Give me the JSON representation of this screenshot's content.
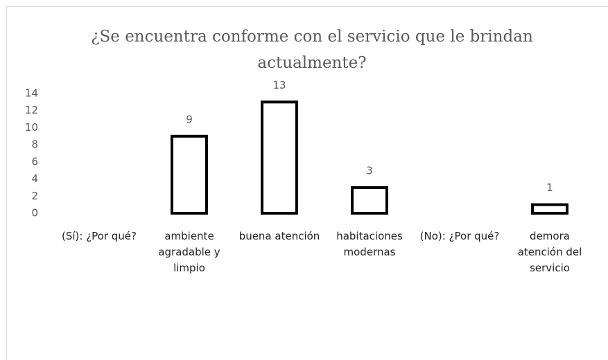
{
  "chart_data": {
    "type": "bar",
    "title": "¿Se encuentra conforme con el servicio que le brindan actualmente?",
    "categories": [
      "(Sí): ¿Por qué?",
      "ambiente agradable y limpio",
      "buena atención",
      "habitaciones modernas",
      "(No): ¿Por qué?",
      "demora atención del servicio"
    ],
    "values": [
      null,
      9,
      13,
      3,
      null,
      1
    ],
    "color": "#000000",
    "ylim": [
      0,
      14
    ],
    "yticks": [
      0,
      2,
      4,
      6,
      8,
      10,
      12,
      14
    ],
    "grid": false
  }
}
